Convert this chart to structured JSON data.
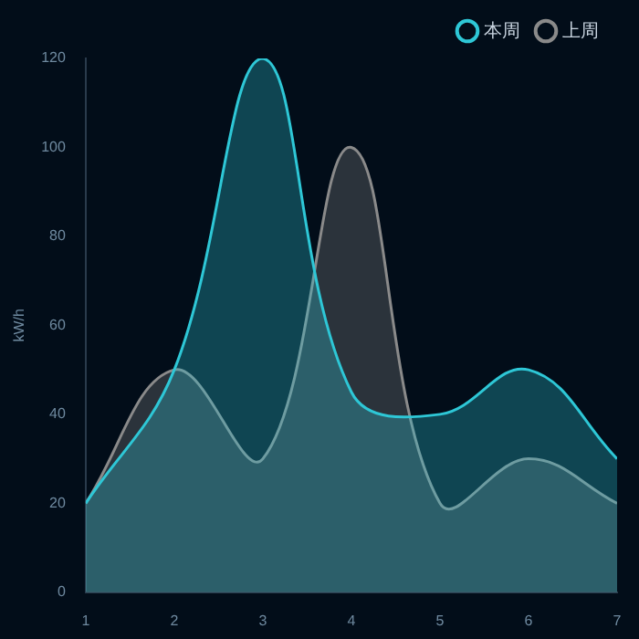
{
  "chart_data": {
    "type": "area",
    "ylabel": "kW/h",
    "x": [
      1,
      2,
      3,
      4,
      5,
      6,
      7
    ],
    "xlim": [
      1,
      7
    ],
    "xticks": [
      1,
      2,
      3,
      4,
      5,
      6,
      7
    ],
    "ylim": [
      0,
      120
    ],
    "yticks": [
      0,
      20,
      40,
      60,
      80,
      100,
      120
    ],
    "grid": false,
    "legend": "top right",
    "marker": "none",
    "series": [
      {
        "name": "本周",
        "color": "#2ec7d6",
        "values": [
          20,
          50,
          120,
          45,
          40,
          50,
          30
        ]
      },
      {
        "name": "上周",
        "color": "#8a8a8a",
        "values": [
          20,
          50,
          30,
          100,
          20,
          30,
          20
        ]
      }
    ]
  }
}
